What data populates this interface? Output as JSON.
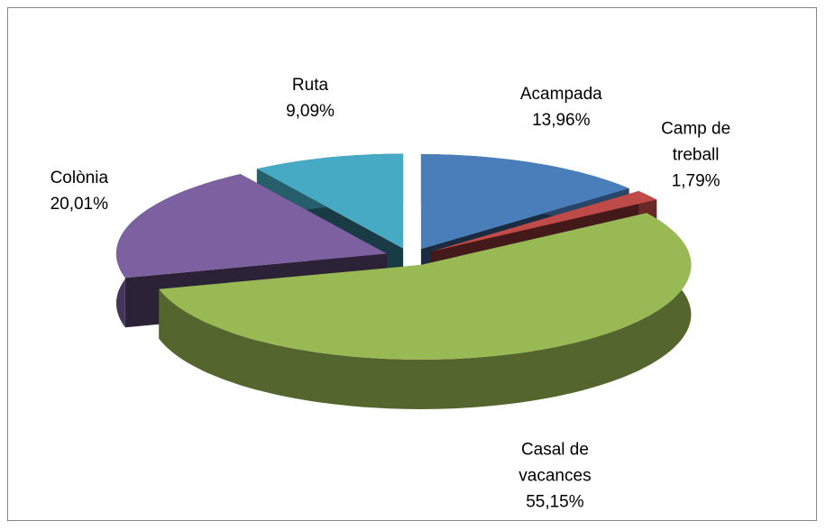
{
  "chart_data": {
    "type": "pie3d",
    "categories": [
      "Acampada",
      "Camp de treball",
      "Casal de vacances",
      "Colònia",
      "Ruta"
    ],
    "values": [
      13.96,
      1.79,
      55.15,
      20.01,
      9.09
    ],
    "value_labels": [
      "13,96%",
      "1,79%",
      "55,15%",
      "20,01%",
      "9,09%"
    ],
    "colors": [
      "#4a7ebb",
      "#be4b48",
      "#98b954",
      "#7d60a0",
      "#46aac5"
    ],
    "exploded": true
  }
}
